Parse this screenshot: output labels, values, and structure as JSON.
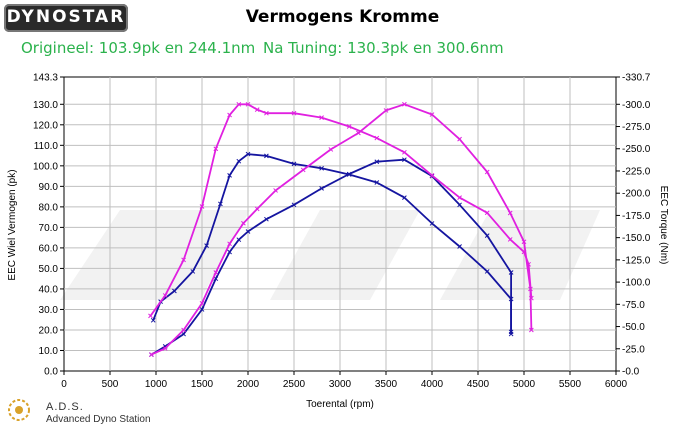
{
  "logo": {
    "text": "DYNOSTAR"
  },
  "title": "Vermogens Kromme",
  "legend": {
    "original": "Origineel: 103.9pk en 244.1nm",
    "tuned": "Na Tuning: 130.3pk en 300.6nm"
  },
  "colors": {
    "original": "#1515a0",
    "tuned": "#e020e0",
    "legend_text": "#2bb24c",
    "grid": "#bfbfbf"
  },
  "footer": {
    "ads_title": "A.D.S.",
    "ads_subtitle": "Advanced Dyno Station"
  },
  "chart_data": {
    "type": "line",
    "title": "Vermogens Kromme",
    "xlabel": "Toerental (rpm)",
    "ylabel": "EEC Wiel Vermogen (pk)",
    "y2label": "EEC Torque (Nm)",
    "xlim": [
      0,
      6000
    ],
    "ylim": [
      0,
      143.3
    ],
    "y2lim": [
      0,
      330.7
    ],
    "grid": true,
    "x_ticks": [
      "0",
      "500",
      "1000",
      "1500",
      "2000",
      "2500",
      "3000",
      "3500",
      "4000",
      "4500",
      "5000",
      "5500",
      "6000"
    ],
    "y_ticks": [
      "0.0",
      "10.0",
      "20.0",
      "30.0",
      "40.0",
      "50.0",
      "60.0",
      "70.0",
      "80.0",
      "90.0",
      "100.0",
      "110.0",
      "120.0",
      "130.0",
      "143.3"
    ],
    "y2_ticks": [
      "0.0",
      "25.0",
      "50.0",
      "75.0",
      "100.0",
      "125.0",
      "150.0",
      "175.0",
      "200.0",
      "225.0",
      "250.0",
      "275.0",
      "300.0",
      "330.7"
    ],
    "series": [
      {
        "name": "Origineel",
        "kind": "power",
        "axis": "left",
        "color": "#1515a0",
        "x": [
          950,
          1100,
          1300,
          1500,
          1650,
          1800,
          1900,
          2000,
          2200,
          2500,
          2800,
          3100,
          3400,
          3700,
          4000,
          4300,
          4600,
          4860,
          4860
        ],
        "y": [
          8,
          12,
          18,
          30,
          45,
          58,
          64,
          68,
          74,
          81,
          89,
          96,
          102,
          103,
          95,
          81,
          66,
          48,
          18
        ]
      },
      {
        "name": "Origineel",
        "kind": "torque",
        "axis": "right",
        "color": "#1515a0",
        "x": [
          970,
          1050,
          1200,
          1400,
          1550,
          1700,
          1800,
          1900,
          2000,
          2200,
          2500,
          2800,
          3100,
          3400,
          3700,
          4000,
          4300,
          4600,
          4860,
          4860
        ],
        "y": [
          57,
          78,
          90,
          112,
          141,
          188,
          220,
          236,
          244,
          242,
          233,
          228,
          221,
          212,
          195,
          166,
          140,
          112,
          81,
          44
        ]
      },
      {
        "name": "Na Tuning",
        "kind": "power",
        "axis": "left",
        "color": "#e020e0",
        "x": [
          950,
          1100,
          1300,
          1500,
          1650,
          1800,
          1950,
          2100,
          2300,
          2600,
          2900,
          3200,
          3500,
          3700,
          4000,
          4300,
          4600,
          4850,
          5000,
          5070,
          5080
        ],
        "y": [
          8,
          11,
          20,
          33,
          48,
          62,
          72,
          79,
          88,
          98,
          108,
          116,
          127,
          130,
          125,
          113,
          97,
          77,
          63,
          40,
          20
        ]
      },
      {
        "name": "Na Tuning",
        "kind": "torque",
        "axis": "right",
        "color": "#e020e0",
        "x": [
          940,
          1100,
          1300,
          1500,
          1650,
          1800,
          1900,
          2000,
          2100,
          2200,
          2500,
          2800,
          3100,
          3400,
          3700,
          4000,
          4300,
          4600,
          4850,
          5000,
          5050,
          5080
        ],
        "y": [
          62,
          85,
          125,
          185,
          250,
          288,
          300,
          300,
          294,
          290,
          290,
          285,
          275,
          262,
          246,
          220,
          195,
          178,
          148,
          134,
          120,
          82
        ]
      }
    ]
  }
}
